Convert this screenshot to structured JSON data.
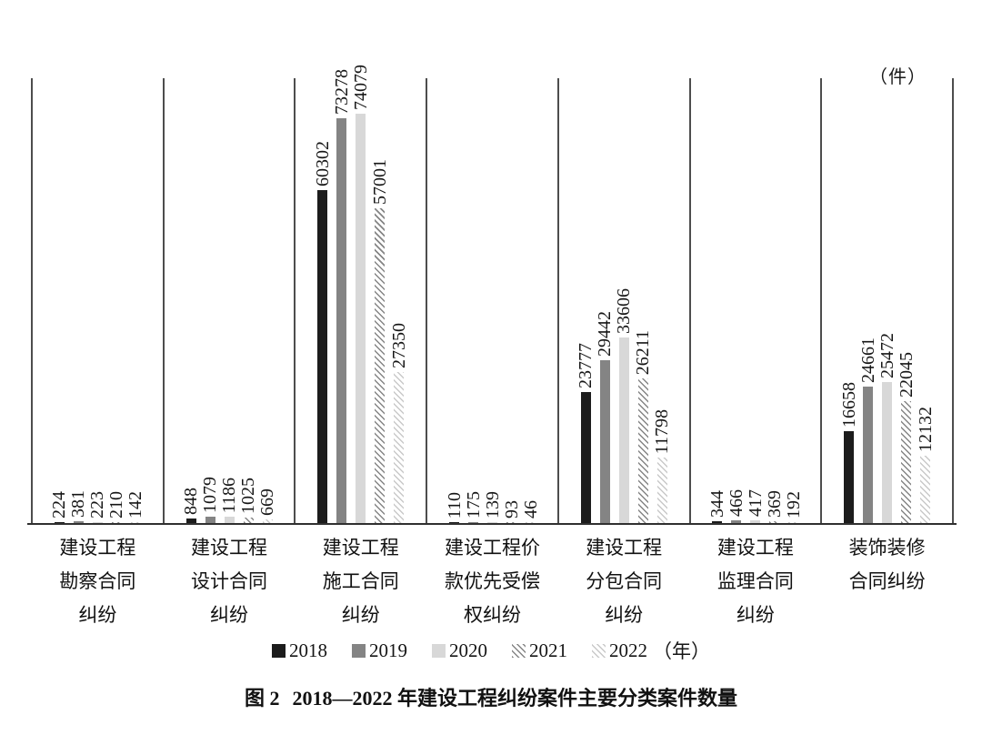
{
  "figure": {
    "unit_label": "（件）",
    "caption_prefix": "图 2",
    "caption_text": "2018—2022 年建设工程纠纷案件主要分类案件数量"
  },
  "chart_data": {
    "type": "bar",
    "title": "图 2 2018—2022 年建设工程纠纷案件主要分类案件数量",
    "unit": "件",
    "ylim": [
      0,
      74079
    ],
    "grid": "vertical-category-dividers",
    "legend_position": "bottom",
    "legend_year_suffix": "（年）",
    "categories": [
      {
        "label": "建设工程勘察合同纠纷",
        "lines": [
          "建设工程",
          "勘察合同",
          "纠纷"
        ]
      },
      {
        "label": "建设工程设计合同纠纷",
        "lines": [
          "建设工程",
          "设计合同",
          "纠纷"
        ]
      },
      {
        "label": "建设工程施工合同纠纷",
        "lines": [
          "建设工程",
          "施工合同",
          "纠纷"
        ]
      },
      {
        "label": "建设工程价款优先受偿权纠纷",
        "lines": [
          "建设工程价",
          "款优先受偿",
          "权纠纷"
        ]
      },
      {
        "label": "建设工程分包合同纠纷",
        "lines": [
          "建设工程",
          "分包合同",
          "纠纷"
        ]
      },
      {
        "label": "建设工程监理合同纠纷",
        "lines": [
          "建设工程",
          "监理合同",
          "纠纷"
        ]
      },
      {
        "label": "装饰装修合同纠纷",
        "lines": [
          "装饰装修",
          "合同纠纷"
        ]
      }
    ],
    "series": [
      {
        "name": "2018",
        "pattern": "solid",
        "color": "#1c1c1c",
        "values": [
          224,
          848,
          60302,
          110,
          23777,
          344,
          16658
        ]
      },
      {
        "name": "2019",
        "pattern": "solid",
        "color": "#848484",
        "values": [
          381,
          1079,
          73278,
          175,
          29442,
          466,
          24661
        ]
      },
      {
        "name": "2020",
        "pattern": "solid",
        "color": "#d8d8d8",
        "values": [
          223,
          1186,
          74079,
          139,
          33606,
          417,
          25472
        ]
      },
      {
        "name": "2021",
        "pattern": "hatch",
        "color": "#858585",
        "values": [
          210,
          1025,
          57001,
          93,
          26211,
          369,
          22045
        ]
      },
      {
        "name": "2022",
        "pattern": "hatch",
        "color": "#c9c9c9",
        "values": [
          142,
          669,
          27350,
          46,
          11798,
          192,
          12132
        ]
      }
    ]
  }
}
